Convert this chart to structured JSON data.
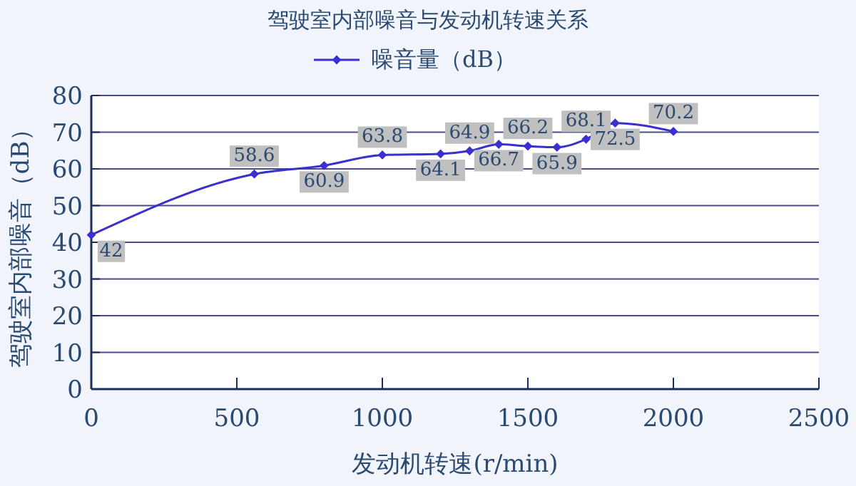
{
  "chart_data": {
    "type": "line",
    "title": "驾驶室内部噪音与发动机转速关系",
    "xlabel": "发动机转速(r/min)",
    "ylabel": "驾驶室内部噪音（dB）",
    "x": [
      0,
      560,
      800,
      1000,
      1200,
      1300,
      1400,
      1500,
      1600,
      1700,
      1800,
      2000
    ],
    "series": [
      {
        "name": "噪音量（dB）",
        "color": "#3a2fd0",
        "values": [
          42,
          58.6,
          60.9,
          63.8,
          64.1,
          64.9,
          66.7,
          66.2,
          65.9,
          68.1,
          72.5,
          70.2
        ]
      }
    ],
    "xlim": [
      0,
      2500
    ],
    "xticks": [
      0,
      500,
      1000,
      1500,
      2000,
      2500
    ],
    "ylim": [
      0,
      80
    ],
    "yticks": [
      0,
      10,
      20,
      30,
      40,
      50,
      60,
      70,
      80
    ],
    "grid": "y",
    "legend": "top",
    "marker": "diamond",
    "data_labels": true
  }
}
